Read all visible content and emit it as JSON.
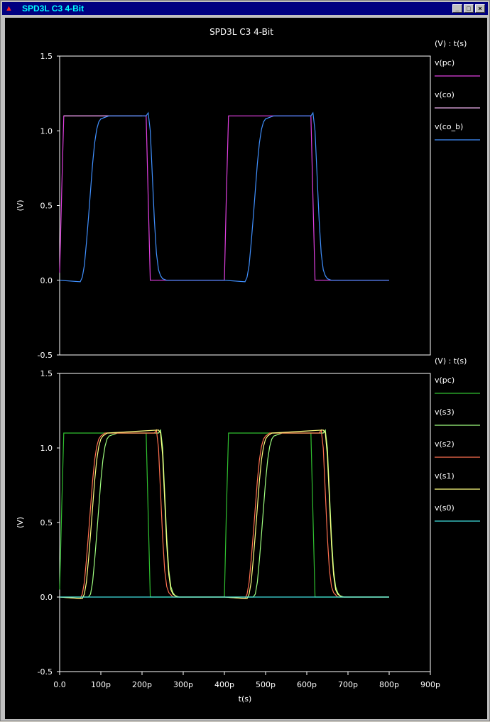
{
  "window": {
    "title": "SPD3L C3 4-Bit",
    "buttons": {
      "minimize": "_",
      "maximize": "□",
      "close": "×"
    }
  },
  "figure": {
    "title": "SPD3L C3 4-Bit",
    "background": "#000000",
    "foreground": "#ffffff"
  },
  "chart_data": [
    {
      "type": "line",
      "title": "SPD3L C3 4-Bit",
      "legend_title": "(V) : t(s)",
      "ylabel": "(V)",
      "xlabel": "",
      "xlim": [
        0,
        900
      ],
      "ylim": [
        -0.5,
        1.5
      ],
      "xunit": "p",
      "yticks": [
        "1.5",
        "1.0",
        "0.5",
        "0.0",
        "-0.5"
      ],
      "legend_position": "right",
      "series": [
        {
          "name": "v(pc)",
          "color": "#e040e0",
          "x": [
            0,
            5,
            10,
            200,
            210,
            220,
            400,
            405,
            410,
            600,
            610,
            620,
            800
          ],
          "y": [
            0.05,
            0.6,
            1.1,
            1.1,
            1.1,
            0.0,
            0.0,
            0.6,
            1.1,
            1.1,
            1.1,
            0.0,
            0.0
          ]
        },
        {
          "name": "v(co)",
          "color": "#f0b0f0",
          "x": [
            10,
            200
          ],
          "y": [
            1.1,
            1.1
          ]
        },
        {
          "name": "v(co_b)",
          "color": "#4090ff",
          "x": [
            0,
            50,
            55,
            60,
            65,
            70,
            75,
            80,
            85,
            90,
            95,
            100,
            110,
            120,
            210,
            215,
            220,
            225,
            230,
            235,
            240,
            245,
            250,
            260,
            280,
            400,
            450,
            455,
            460,
            465,
            470,
            475,
            480,
            485,
            490,
            495,
            500,
            510,
            520,
            610,
            615,
            620,
            625,
            630,
            635,
            640,
            645,
            650,
            660,
            680,
            800
          ],
          "y": [
            0.0,
            -0.01,
            0.02,
            0.1,
            0.25,
            0.42,
            0.6,
            0.78,
            0.92,
            1.01,
            1.06,
            1.08,
            1.09,
            1.1,
            1.1,
            1.12,
            1.0,
            0.7,
            0.4,
            0.18,
            0.07,
            0.03,
            0.01,
            0.0,
            0.0,
            0.0,
            -0.01,
            0.02,
            0.1,
            0.25,
            0.42,
            0.6,
            0.78,
            0.92,
            1.01,
            1.06,
            1.08,
            1.09,
            1.1,
            1.1,
            1.12,
            1.0,
            0.7,
            0.4,
            0.18,
            0.07,
            0.03,
            0.01,
            0.0,
            0.0,
            0.0
          ]
        }
      ]
    },
    {
      "type": "line",
      "legend_title": "(V) : t(s)",
      "ylabel": "(V)",
      "xlabel": "t(s)",
      "xlim": [
        0,
        900
      ],
      "ylim": [
        -0.5,
        1.5
      ],
      "xunit": "p",
      "xticks": [
        "0.0",
        "100p",
        "200p",
        "300p",
        "400p",
        "500p",
        "600p",
        "700p",
        "800p",
        "900p"
      ],
      "yticks": [
        "1.5",
        "1.0",
        "0.5",
        "0.0",
        "-0.5"
      ],
      "legend_position": "right",
      "series": [
        {
          "name": "v(pc)",
          "color": "#30c030",
          "x": [
            0,
            5,
            10,
            200,
            210,
            220,
            400,
            405,
            410,
            600,
            610,
            620,
            800
          ],
          "y": [
            0.05,
            0.6,
            1.1,
            1.1,
            1.1,
            0.0,
            0.0,
            0.6,
            1.1,
            1.1,
            1.1,
            0.0,
            0.0
          ]
        },
        {
          "name": "v(s3)",
          "color": "#a0ff80",
          "x": [
            0,
            70,
            75,
            80,
            85,
            90,
            95,
            100,
            105,
            110,
            115,
            120,
            130,
            140,
            240,
            245,
            250,
            255,
            260,
            265,
            270,
            275,
            280,
            290,
            400,
            470,
            475,
            480,
            485,
            490,
            495,
            500,
            505,
            510,
            515,
            520,
            530,
            540,
            640,
            645,
            650,
            655,
            660,
            665,
            670,
            675,
            680,
            690,
            800
          ],
          "y": [
            0.0,
            0.0,
            0.02,
            0.1,
            0.25,
            0.42,
            0.6,
            0.78,
            0.92,
            1.01,
            1.06,
            1.08,
            1.09,
            1.1,
            1.1,
            1.12,
            1.0,
            0.7,
            0.4,
            0.18,
            0.07,
            0.03,
            0.01,
            0.0,
            0.0,
            0.0,
            0.02,
            0.1,
            0.25,
            0.42,
            0.6,
            0.78,
            0.92,
            1.01,
            1.06,
            1.08,
            1.09,
            1.1,
            1.1,
            1.12,
            1.0,
            0.7,
            0.4,
            0.18,
            0.07,
            0.03,
            0.01,
            0.0,
            0.0
          ]
        },
        {
          "name": "v(s2)",
          "color": "#ff7050",
          "x": [
            0,
            50,
            55,
            60,
            65,
            70,
            75,
            80,
            85,
            90,
            95,
            100,
            110,
            230,
            235,
            240,
            245,
            250,
            255,
            260,
            265,
            275,
            400,
            450,
            455,
            460,
            465,
            470,
            475,
            480,
            485,
            490,
            495,
            500,
            510,
            630,
            635,
            640,
            645,
            650,
            655,
            660,
            665,
            675,
            800
          ],
          "y": [
            0.0,
            -0.01,
            0.02,
            0.1,
            0.25,
            0.42,
            0.6,
            0.78,
            0.92,
            1.01,
            1.06,
            1.08,
            1.1,
            1.1,
            1.12,
            1.0,
            0.7,
            0.4,
            0.18,
            0.07,
            0.03,
            0.0,
            0.0,
            -0.01,
            0.02,
            0.1,
            0.25,
            0.42,
            0.6,
            0.78,
            0.92,
            1.01,
            1.06,
            1.08,
            1.1,
            1.1,
            1.12,
            1.0,
            0.7,
            0.4,
            0.18,
            0.07,
            0.03,
            0.0,
            0.0
          ]
        },
        {
          "name": "v(s1)",
          "color": "#ffff80",
          "x": [
            0,
            55,
            60,
            65,
            70,
            75,
            80,
            85,
            90,
            95,
            100,
            105,
            115,
            240,
            245,
            250,
            255,
            260,
            265,
            270,
            275,
            285,
            400,
            455,
            460,
            465,
            470,
            475,
            480,
            485,
            490,
            495,
            500,
            505,
            515,
            640,
            645,
            650,
            655,
            660,
            665,
            670,
            675,
            685,
            800
          ],
          "y": [
            0.0,
            -0.01,
            0.02,
            0.1,
            0.25,
            0.42,
            0.6,
            0.78,
            0.92,
            1.01,
            1.06,
            1.08,
            1.1,
            1.12,
            1.1,
            0.95,
            0.65,
            0.35,
            0.15,
            0.05,
            0.02,
            0.0,
            0.0,
            -0.01,
            0.02,
            0.1,
            0.25,
            0.42,
            0.6,
            0.78,
            0.92,
            1.01,
            1.06,
            1.08,
            1.1,
            1.12,
            1.1,
            0.95,
            0.65,
            0.35,
            0.15,
            0.05,
            0.02,
            0.0,
            0.0
          ]
        },
        {
          "name": "v(s0)",
          "color": "#40e0e0",
          "x": [
            0,
            800
          ],
          "y": [
            0.0,
            0.0
          ]
        }
      ]
    }
  ]
}
